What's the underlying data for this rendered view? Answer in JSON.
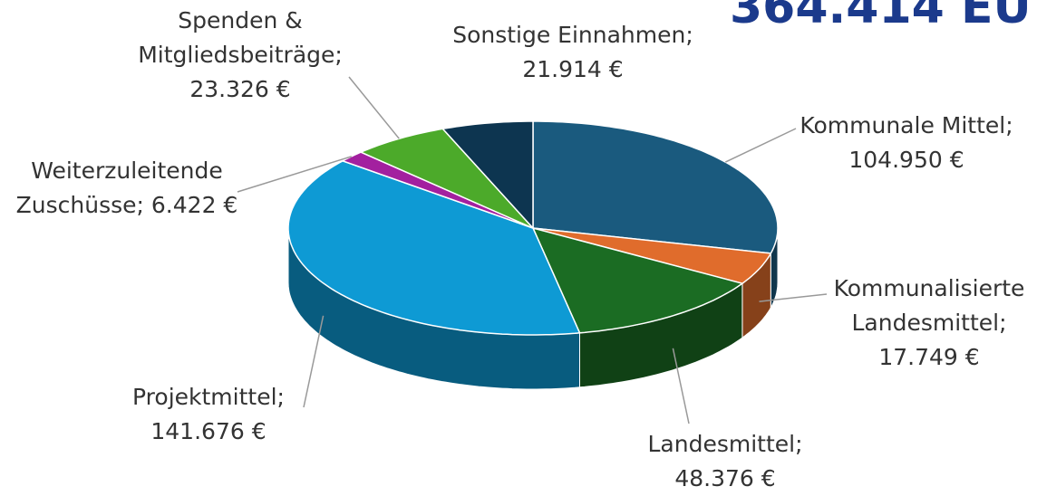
{
  "chart_data": {
    "type": "pie3d",
    "title": "364.414 EU",
    "categories": [
      "Kommunale Mittel;",
      "Kommunalisierte Landesmittel;",
      "Landesmittel;",
      "Projektmittel;",
      "Weiterzuleitende Zuschüsse;",
      "Spenden & Mitgliedsbeiträge;",
      "Sonstige Einnahmen;"
    ],
    "values": [
      104950,
      17749,
      48376,
      141676,
      6422,
      23326,
      21914
    ],
    "value_labels": [
      "104.950 €",
      "17.749 €",
      "48.376 €",
      "141.676 €",
      "6.422 €",
      "23.326 €",
      "21.914 €"
    ],
    "colors": [
      "#1a5a7e",
      "#e06c2c",
      "#1b6c23",
      "#0e9ad4",
      "#a3209f",
      "#4caa2a",
      "#0d3550"
    ]
  }
}
